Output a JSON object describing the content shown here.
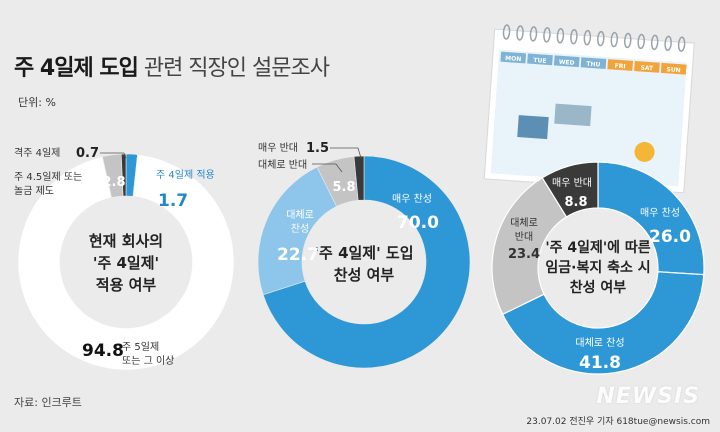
{
  "title": {
    "bold": "주 4일제 도입",
    "rest": "관련 직장인 설문조사"
  },
  "unit": "단위: %",
  "source": "자료: 인크루트",
  "credit": "23.07.02 전진우 기자 618tue@newsis.com",
  "watermark": "NEWSIS",
  "colors": {
    "blue": "#2e97d6",
    "lightblue": "#8dc6ea",
    "gray": "#c4c4c4",
    "dark": "#3a3a3a",
    "white": "#ffffff",
    "bluetext": "#2788c8"
  },
  "calendar_days": [
    "MON",
    "TUE",
    "WED",
    "THU",
    "FRI",
    "SAT",
    "SUN"
  ],
  "chart_data": [
    {
      "type": "pie",
      "center_text": [
        "현재 회사의",
        "'주 4일제'",
        "적용 여부"
      ],
      "slices": [
        {
          "label": "주 4일제 적용",
          "value": 1.7,
          "value_text": "1.7"
        },
        {
          "label": "주 5일제 또는 그 이상",
          "value": 94.8,
          "value_text": "94.8"
        },
        {
          "label": "주 4.5일제 또는 놀금 제도",
          "value": 2.8,
          "value_text": "2.8"
        },
        {
          "label": "격주 4일제",
          "value": 0.7,
          "value_text": "0.7"
        }
      ]
    },
    {
      "type": "pie",
      "center_text": [
        "'주 4일제' 도입",
        "찬성 여부"
      ],
      "slices": [
        {
          "label": "매우 찬성",
          "value": 70.0,
          "value_text": "70.0"
        },
        {
          "label": "대체로 찬성",
          "value": 22.7,
          "value_text": "22.7"
        },
        {
          "label": "대체로 반대",
          "value": 5.8,
          "value_text": "5.8"
        },
        {
          "label": "매우 반대",
          "value": 1.5,
          "value_text": "1.5"
        }
      ]
    },
    {
      "type": "pie",
      "center_text": [
        "'주 4일제'에 따른",
        "임금·복지 축소 시",
        "찬성 여부"
      ],
      "slices": [
        {
          "label": "매우 찬성",
          "value": 26.0,
          "value_text": "26.0"
        },
        {
          "label": "대체로 찬성",
          "value": 41.8,
          "value_text": "41.8"
        },
        {
          "label": "대체로 반대",
          "value": 23.4,
          "value_text": "23.4"
        },
        {
          "label": "매우 반대",
          "value": 8.8,
          "value_text": "8.8"
        }
      ]
    }
  ]
}
